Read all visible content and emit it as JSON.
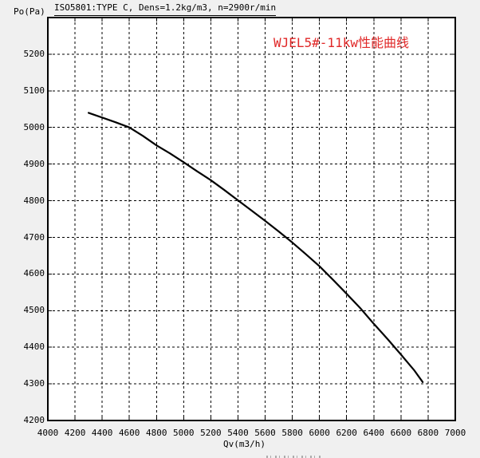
{
  "window": {
    "background_color": "#f0f0f0",
    "plot_background_color": "#ffffff",
    "frame_color": "#000000"
  },
  "header": {
    "standard_line": "ISO5801:TYPE C, Dens=1.2kg/m3, n=2900r/min",
    "y_unit": "Po(Pa)"
  },
  "annotation": {
    "text": "WJEL5#-11kw性能曲线",
    "color": "#e02828"
  },
  "chart_data": {
    "type": "line",
    "title": "WJEL5#-11kw性能曲线",
    "subtitle": "ISO5801:TYPE C, Dens=1.2kg/m3, n=2900r/min",
    "xlabel": "Qv(m3/h)",
    "ylabel": "Po(Pa)",
    "xlim": [
      4000,
      7000
    ],
    "ylim": [
      4200,
      5300
    ],
    "x_ticks": [
      4000,
      4200,
      4400,
      4600,
      4800,
      5000,
      5200,
      5400,
      5600,
      5800,
      6000,
      6200,
      6400,
      6600,
      6800,
      7000
    ],
    "y_ticks": [
      4200,
      4300,
      4400,
      4500,
      4600,
      4700,
      4800,
      4900,
      5000,
      5100,
      5200
    ],
    "grid": "dashed",
    "legend_position": "none",
    "series": [
      {
        "name": "WJEL5#-11kw",
        "color": "#000000",
        "points": [
          [
            4300,
            5040
          ],
          [
            4400,
            5027
          ],
          [
            4500,
            5014
          ],
          [
            4600,
            5000
          ],
          [
            4700,
            4977
          ],
          [
            4800,
            4951
          ],
          [
            4900,
            4929
          ],
          [
            5000,
            4905
          ],
          [
            5100,
            4880
          ],
          [
            5200,
            4856
          ],
          [
            5300,
            4829
          ],
          [
            5400,
            4801
          ],
          [
            5500,
            4773
          ],
          [
            5600,
            4745
          ],
          [
            5700,
            4716
          ],
          [
            5800,
            4686
          ],
          [
            5900,
            4654
          ],
          [
            6000,
            4621
          ],
          [
            6100,
            4584
          ],
          [
            6200,
            4546
          ],
          [
            6300,
            4507
          ],
          [
            6400,
            4464
          ],
          [
            6500,
            4423
          ],
          [
            6600,
            4380
          ],
          [
            6700,
            4336
          ],
          [
            6760,
            4305
          ]
        ]
      }
    ]
  }
}
